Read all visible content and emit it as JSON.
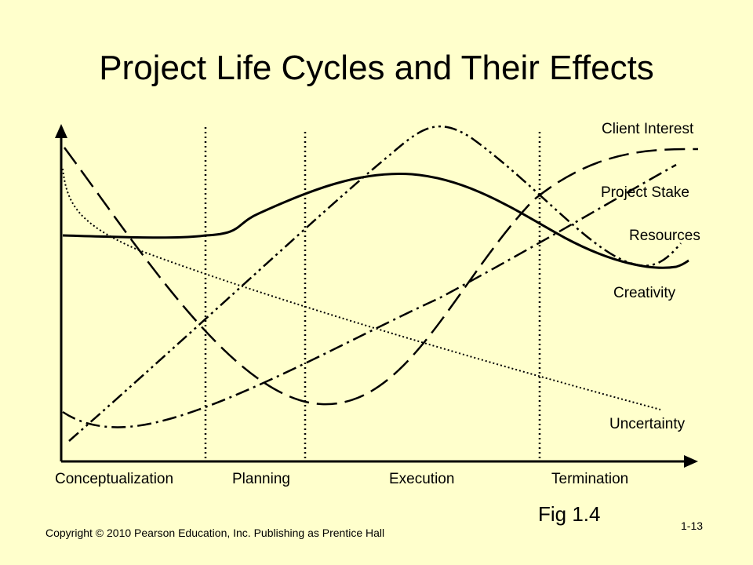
{
  "title": "Project Life Cycles and Their Effects",
  "curves": {
    "client_interest": "Client Interest",
    "project_stake": "Project Stake",
    "resources": "Resources",
    "creativity": "Creativity",
    "uncertainty": "Uncertainty"
  },
  "phases": {
    "conceptualization": "Conceptualization",
    "planning": "Planning",
    "execution": "Execution",
    "termination": "Termination"
  },
  "figure_label": "Fig 1.4",
  "copyright": "Copyright © 2010 Pearson Education, Inc. Publishing as Prentice Hall",
  "slide_number": "1-13",
  "colors": {
    "background": "#ffffcc",
    "ink": "#000000"
  }
}
